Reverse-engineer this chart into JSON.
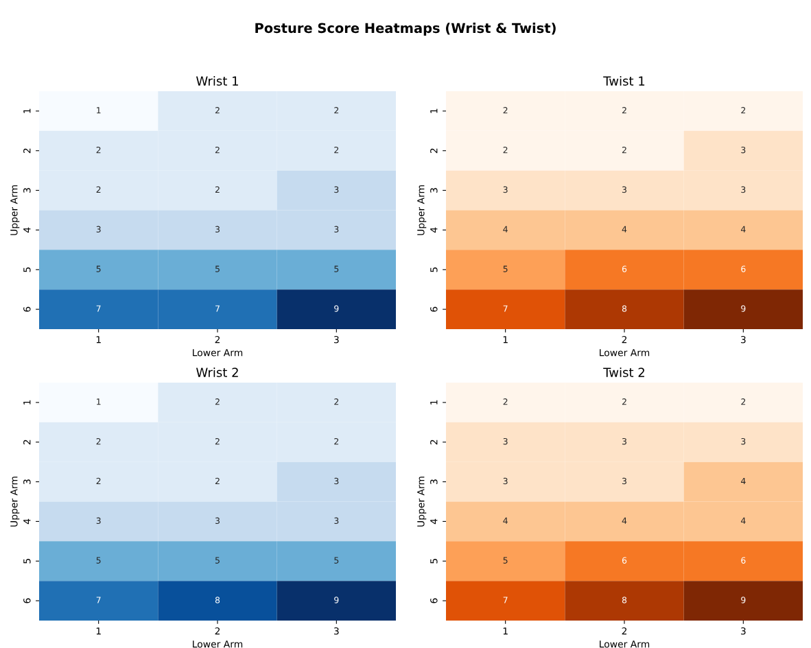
{
  "chart_data": [
    {
      "type": "heatmap",
      "annotations": [
        "Posture Score Heatmaps (Wrist & Twist)"
      ],
      "title": "Wrist 1",
      "xlabel": "Lower Arm",
      "ylabel": "Upper Arm",
      "categories": [
        "1",
        "2",
        "3"
      ],
      "y_categories": [
        "1",
        "2",
        "3",
        "4",
        "5",
        "6"
      ],
      "cells": [
        [
          1,
          2,
          2
        ],
        [
          2,
          2,
          2
        ],
        [
          2,
          2,
          3
        ],
        [
          3,
          3,
          3
        ],
        [
          5,
          5,
          5
        ],
        [
          7,
          7,
          9
        ]
      ],
      "colors": [
        "#f7fbff",
        "#deebf7",
        "#c6dbef",
        "#9ecae1",
        "#6baed6",
        "#4292c6",
        "#2171b5",
        "#08519c",
        "#08306b"
      ],
      "data_labels": true
    },
    {
      "type": "heatmap",
      "title": "Twist 1",
      "xlabel": "Lower Arm",
      "ylabel": "Upper Arm",
      "categories": [
        "1",
        "2",
        "3"
      ],
      "y_categories": [
        "1",
        "2",
        "3",
        "4",
        "5",
        "6"
      ],
      "cells": [
        [
          2,
          2,
          2
        ],
        [
          2,
          2,
          3
        ],
        [
          3,
          3,
          3
        ],
        [
          4,
          4,
          4
        ],
        [
          5,
          6,
          6
        ],
        [
          7,
          8,
          9
        ]
      ],
      "colors": [
        "#fff5eb",
        "#fee6ce",
        "#fdd0a2",
        "#fdae6b",
        "#fd8d3c",
        "#f16913",
        "#d94801",
        "#a63603",
        "#7f2704"
      ],
      "data_labels": true
    },
    {
      "type": "heatmap",
      "title": "Wrist 2",
      "xlabel": "Lower Arm",
      "ylabel": "Upper Arm",
      "categories": [
        "1",
        "2",
        "3"
      ],
      "y_categories": [
        "1",
        "2",
        "3",
        "4",
        "5",
        "6"
      ],
      "cells": [
        [
          1,
          2,
          2
        ],
        [
          2,
          2,
          2
        ],
        [
          2,
          2,
          3
        ],
        [
          3,
          3,
          3
        ],
        [
          5,
          5,
          5
        ],
        [
          7,
          8,
          9
        ]
      ],
      "colors": [
        "#f7fbff",
        "#deebf7",
        "#c6dbef",
        "#9ecae1",
        "#6baed6",
        "#4292c6",
        "#2171b5",
        "#08519c",
        "#08306b"
      ],
      "data_labels": true
    },
    {
      "type": "heatmap",
      "title": "Twist 2",
      "xlabel": "Lower Arm",
      "ylabel": "Upper Arm",
      "categories": [
        "1",
        "2",
        "3"
      ],
      "y_categories": [
        "1",
        "2",
        "3",
        "4",
        "5",
        "6"
      ],
      "cells": [
        [
          2,
          2,
          2
        ],
        [
          3,
          3,
          3
        ],
        [
          3,
          3,
          4
        ],
        [
          4,
          4,
          4
        ],
        [
          5,
          6,
          6
        ],
        [
          7,
          8,
          9
        ]
      ],
      "colors": [
        "#fff5eb",
        "#fee6ce",
        "#fdd0a2",
        "#fdae6b",
        "#fd8d3c",
        "#f16913",
        "#d94801",
        "#a63603",
        "#7f2704"
      ],
      "data_labels": true
    }
  ]
}
